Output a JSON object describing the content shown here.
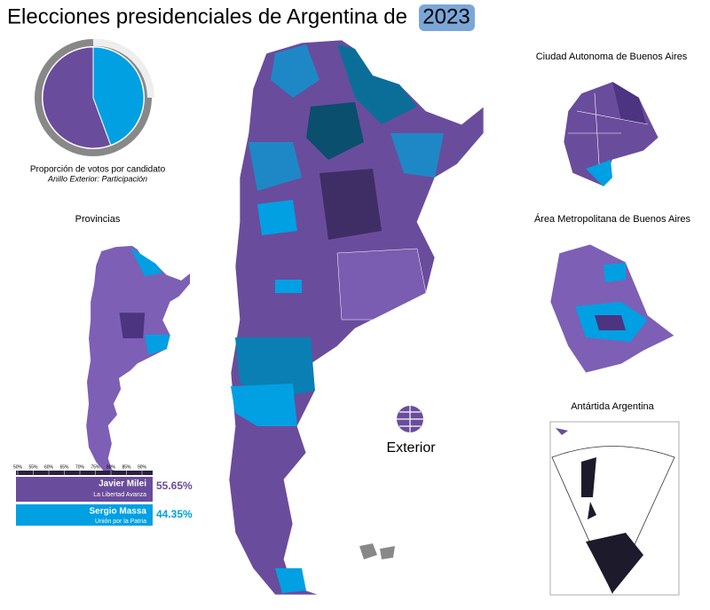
{
  "title": "Elecciones presidenciales de Argentina de",
  "title_year": "2023",
  "chart_data": {
    "type": "pie",
    "caption": "Proporción de votos por candidato",
    "subcaption": "Anillo Exterior: Participación",
    "categories": [
      "Javier Milei",
      "Sergio Massa"
    ],
    "parties": [
      "La Libertad Avanza",
      "Unión por la Patria"
    ],
    "values": [
      55.65,
      44.35
    ],
    "value_labels": [
      "55.65%",
      "44.35%"
    ],
    "colors": [
      "#6a4c9c",
      "#00a0e3"
    ]
  },
  "scale_ticks": [
    {
      "value": 50,
      "label": "50%"
    },
    {
      "value": 55,
      "label": "55%"
    },
    {
      "value": 60,
      "label": "60%"
    },
    {
      "value": 65,
      "label": "65%"
    },
    {
      "value": 70,
      "label": "70%"
    },
    {
      "value": 75,
      "label": "75%"
    },
    {
      "value": 80,
      "label": "80%"
    },
    {
      "value": 85,
      "label": "85%"
    },
    {
      "value": 90,
      "label": "90%"
    }
  ],
  "insets": {
    "provincias": "Provincias",
    "caba": "Ciudad Autonoma de Buenos Aires",
    "amba": "Área Metropolitana de Buenos Aires",
    "antartida": "Antártida Argentina",
    "exterior": "Exterior"
  }
}
